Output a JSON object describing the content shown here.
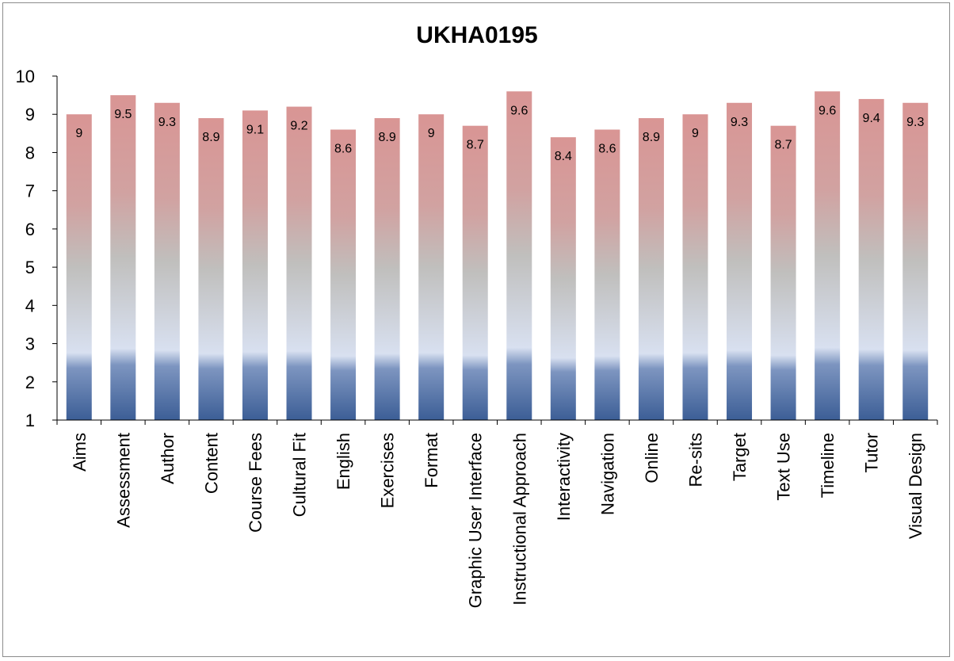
{
  "chart_data": {
    "type": "bar",
    "title": "UKHA0195",
    "xlabel": "",
    "ylabel": "",
    "ylim": [
      1,
      10
    ],
    "yticks": [
      1,
      2,
      3,
      4,
      5,
      6,
      7,
      8,
      9,
      10
    ],
    "grid": false,
    "legend": "none",
    "categories": [
      "Aims",
      "Assessment",
      "Author",
      "Content",
      "Course Fees",
      "Cultural Fit",
      "English",
      "Exercises",
      "Format",
      "Graphic User Interface",
      "Instructional Approach",
      "Interactivity",
      "Navigation",
      "Online",
      "Re-sits",
      "Target",
      "Text Use",
      "Timeline",
      "Tutor",
      "Visual Design"
    ],
    "values": [
      9,
      9.5,
      9.3,
      8.9,
      9.1,
      9.2,
      8.6,
      8.9,
      9,
      8.7,
      9.6,
      8.4,
      8.6,
      8.9,
      9,
      9.3,
      8.7,
      9.6,
      9.4,
      9.3
    ],
    "colors": {
      "bar_top": "#d99594",
      "bar_mid": "#c0bfbd",
      "bar_light": "#d8e0f0",
      "bar_bottom": "#3c5e96",
      "axis": "#000000"
    }
  }
}
